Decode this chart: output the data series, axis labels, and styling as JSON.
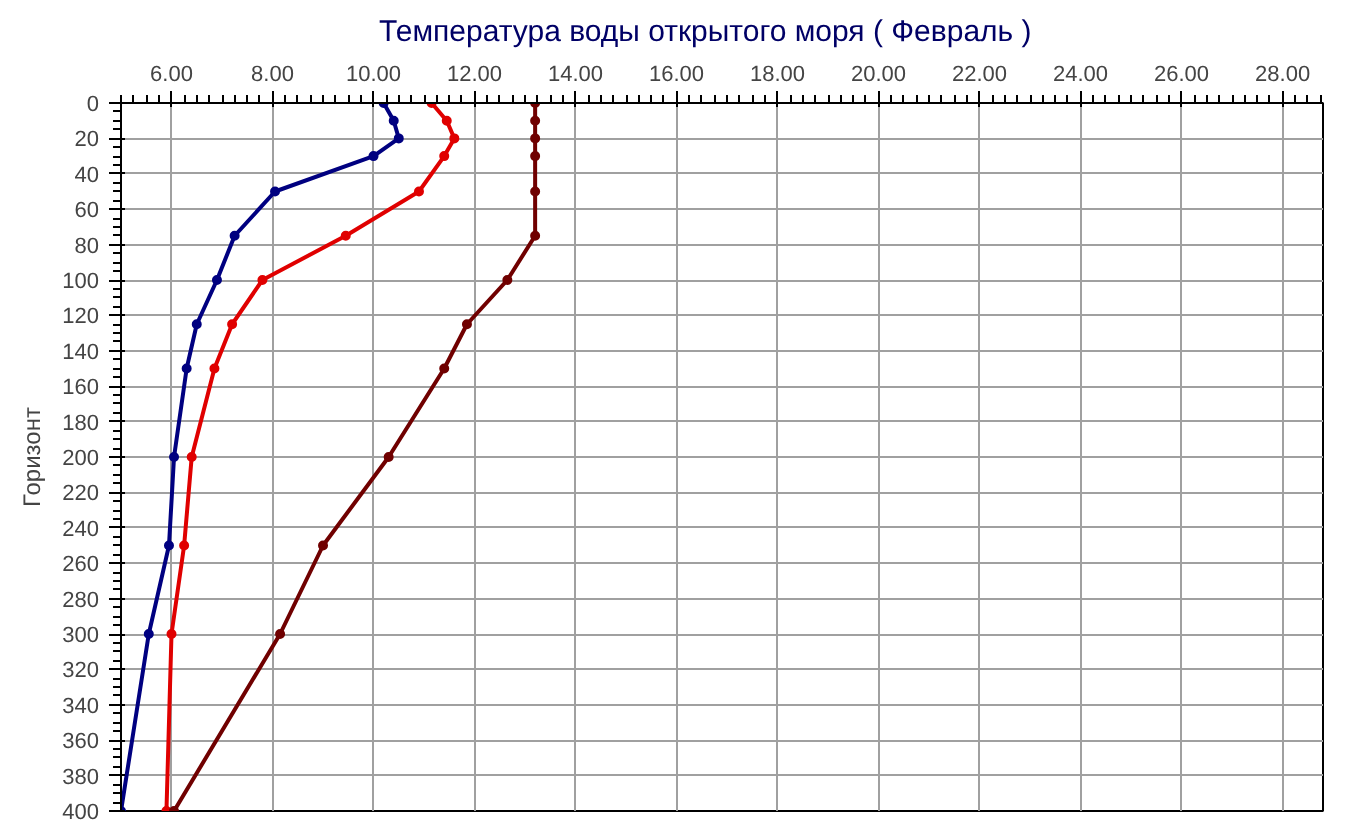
{
  "chart_data": {
    "type": "line",
    "title": "Температура воды открытого моря     ( Февраль )",
    "ylabel": "Горизонт",
    "xlim": [
      5.0,
      28.8
    ],
    "xticks": [
      {
        "value": 6,
        "label": "6.00"
      },
      {
        "value": 8,
        "label": "8.00"
      },
      {
        "value": 10,
        "label": "10.00"
      },
      {
        "value": 12,
        "label": "12.00"
      },
      {
        "value": 14,
        "label": "14.00"
      },
      {
        "value": 16,
        "label": "16.00"
      },
      {
        "value": 18,
        "label": "18.00"
      },
      {
        "value": 20,
        "label": "20.00"
      },
      {
        "value": 22,
        "label": "22.00"
      },
      {
        "value": 24,
        "label": "24.00"
      },
      {
        "value": 26,
        "label": "26.00"
      },
      {
        "value": 28,
        "label": "28.00"
      }
    ],
    "ylim": [
      400,
      0
    ],
    "yticks": [
      0,
      20,
      40,
      60,
      80,
      100,
      120,
      140,
      160,
      180,
      200,
      220,
      240,
      260,
      280,
      300,
      320,
      340,
      360,
      380,
      400
    ],
    "grid": true,
    "marker": "circle",
    "line_style": "solid",
    "orientation": "horizontal",
    "series": [
      {
        "color": "#000080",
        "values": [
          10.2,
          10.4,
          10.5,
          10.0,
          8.05,
          7.25,
          6.9,
          6.5,
          6.3,
          6.05,
          5.95,
          5.55,
          5.0
        ],
        "x": [
          0,
          10,
          20,
          30,
          50,
          75,
          100,
          125,
          150,
          200,
          250,
          300,
          400
        ]
      },
      {
        "color": "#e00000",
        "values": [
          11.15,
          11.45,
          11.6,
          11.4,
          10.9,
          9.45,
          7.8,
          7.2,
          6.85,
          6.4,
          6.25,
          6.0,
          5.9
        ],
        "x": [
          0,
          10,
          20,
          30,
          50,
          75,
          100,
          125,
          150,
          200,
          250,
          300,
          400
        ]
      },
      {
        "color": "#700000",
        "values": [
          13.2,
          13.2,
          13.2,
          13.2,
          13.2,
          13.2,
          12.65,
          11.85,
          11.4,
          10.3,
          9.0,
          8.15,
          6.05
        ],
        "x": [
          0,
          10,
          20,
          30,
          50,
          75,
          100,
          125,
          150,
          200,
          250,
          300,
          400
        ]
      }
    ]
  }
}
